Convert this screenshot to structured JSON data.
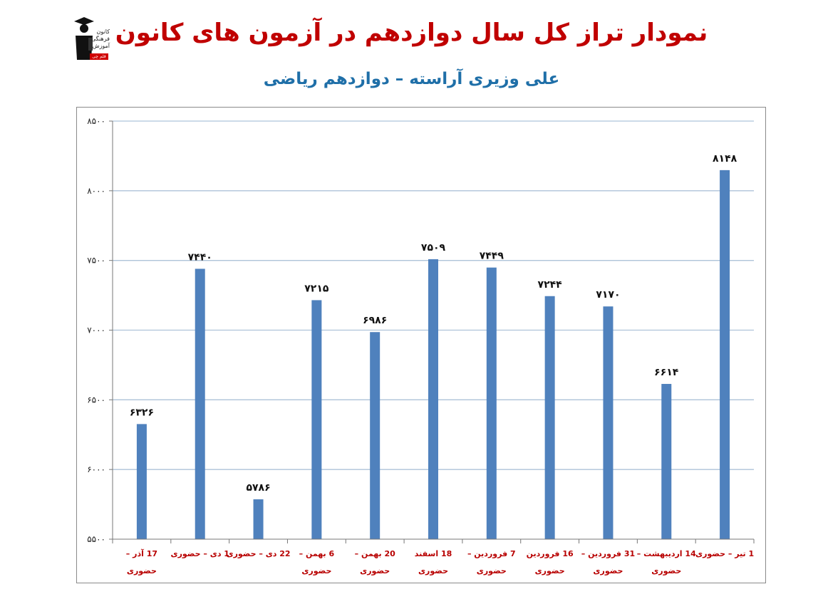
{
  "title": "نمودار تراز کل سال دوازدهم در آزمون های کانون",
  "subtitle": "علی وزیری آراسته – دوازدهم ریاضی",
  "logo": {
    "text_lines": [
      "کانون",
      "فرهنگی",
      "آموزش"
    ],
    "badge": "قلم چی"
  },
  "colors": {
    "title": "#c00000",
    "subtitle": "#1f6fa8",
    "bar": "#4f81bd",
    "category_label": "#b80000",
    "gridline": "#aec3d9"
  },
  "chart_data": {
    "type": "bar",
    "title": "",
    "xlabel": "",
    "ylabel": "",
    "ylim": [
      5500,
      8500
    ],
    "yticks": [
      5500,
      6000,
      6500,
      7000,
      7500,
      8000,
      8500
    ],
    "ytick_labels": [
      "۵۵۰۰",
      "۶۰۰۰",
      "۶۵۰۰",
      "۷۰۰۰",
      "۷۵۰۰",
      "۸۰۰۰",
      "۸۵۰۰"
    ],
    "grid": true,
    "categories": [
      [
        "17 آذر –",
        "حضوری"
      ],
      [
        "1 دی – حضوری"
      ],
      [
        "22 دی – حضوری"
      ],
      [
        "6 بهمن –",
        "حضوری"
      ],
      [
        "20 بهمن –",
        "حضوری"
      ],
      [
        "18 اسفند",
        "حضوری"
      ],
      [
        "7 فروردین –",
        "حضوری"
      ],
      [
        "16 فروردین",
        "حضوری"
      ],
      [
        "31 فروردین –",
        "حضوری"
      ],
      [
        "14 اردیبهشت –",
        "حضوری"
      ],
      [
        "1 تیر – حضوری"
      ]
    ],
    "values": [
      6326,
      7440,
      5786,
      7215,
      6986,
      7509,
      7449,
      7244,
      7170,
      6614,
      8148
    ],
    "value_labels": [
      "۶۳۲۶",
      "۷۴۴۰",
      "۵۷۸۶",
      "۷۲۱۵",
      "۶۹۸۶",
      "۷۵۰۹",
      "۷۴۴۹",
      "۷۲۴۴",
      "۷۱۷۰",
      "۶۶۱۴",
      "۸۱۴۸"
    ]
  }
}
